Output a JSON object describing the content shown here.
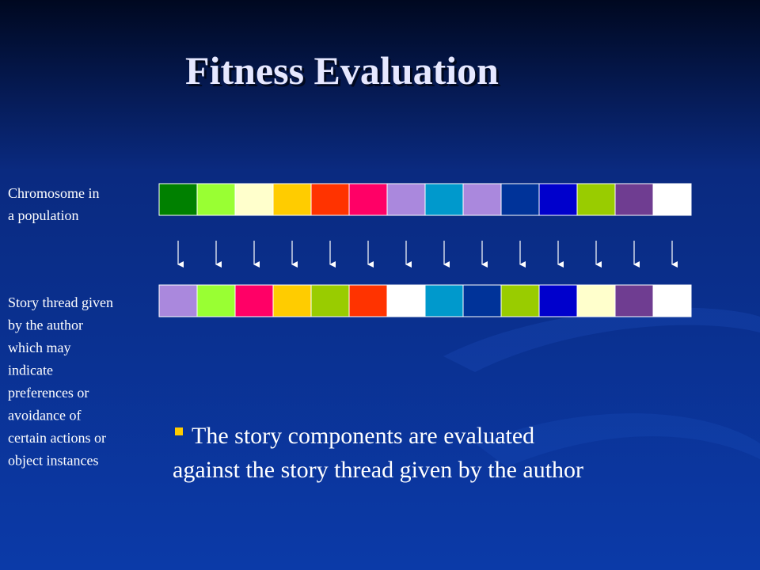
{
  "slide": {
    "title": "Fitness Evaluation",
    "chromosome_label": [
      "Chromosome in",
      "a population"
    ],
    "thread_label": [
      "Story thread given",
      "by the author",
      "which may",
      "indicate",
      "preferences or",
      "avoidance of",
      "certain actions or",
      "object instances"
    ],
    "chromosome_colors": [
      "#008000",
      "#99ff33",
      "#ffffcc",
      "#ffcc00",
      "#ff3300",
      "#ff0066",
      "#aa88dd",
      "#0099cc",
      "#aa88dd",
      "#003399",
      "#0000cc",
      "#99cc00",
      "#6f3d91",
      "#ffffff"
    ],
    "thread_colors": [
      "#aa88dd",
      "#99ff33",
      "#ff0066",
      "#ffcc00",
      "#99cc00",
      "#ff3300",
      "#ffffff",
      "#0099cc",
      "#003399",
      "#99cc00",
      "#0000cc",
      "#ffffcc",
      "#6f3d91",
      "#ffffff"
    ],
    "bullet": [
      "The story components are evaluated",
      "against the story thread given by the author"
    ]
  }
}
